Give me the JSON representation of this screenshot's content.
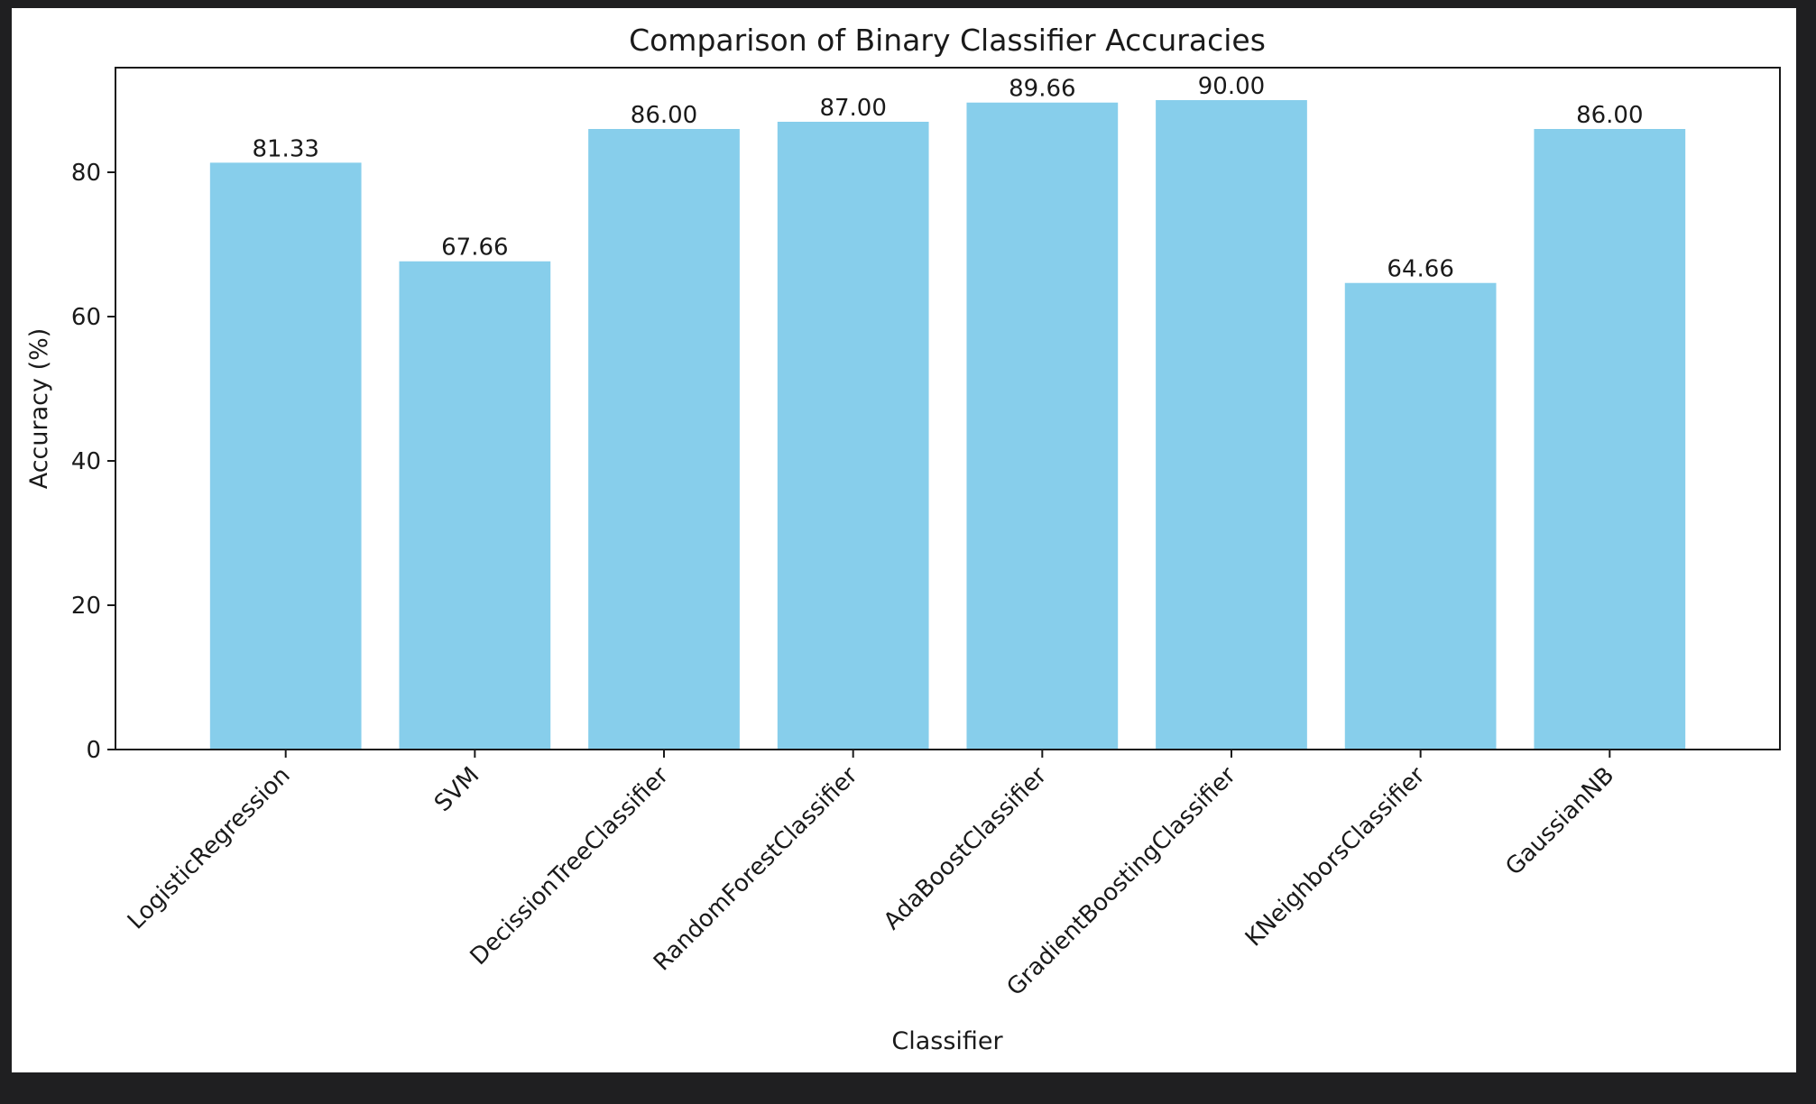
{
  "chart_data": {
    "type": "bar",
    "title": "Comparison of Binary Classifier Accuracies",
    "xlabel": "Classifier",
    "ylabel": "Accuracy (%)",
    "categories": [
      "LogisticRegression",
      "SVM",
      "DecissionTreeClassifier",
      "RandomForestClassifier",
      "AdaBoostClassifier",
      "GradientBoostingClassifier",
      "KNeighborsClassifier",
      "GaussianNB"
    ],
    "values": [
      81.33,
      67.66,
      86.0,
      87.0,
      89.66,
      90.0,
      64.66,
      86.0
    ],
    "value_labels": [
      "81.33",
      "67.66",
      "86.00",
      "87.00",
      "89.66",
      "90.00",
      "64.66",
      "86.00"
    ],
    "ylim": [
      0,
      94.5
    ],
    "yticks": [
      0,
      20,
      40,
      60,
      80
    ],
    "ytick_labels": [
      "0",
      "20",
      "40",
      "60",
      "80"
    ],
    "bar_color": "#87ceeb",
    "grid": false,
    "legend": "none"
  }
}
